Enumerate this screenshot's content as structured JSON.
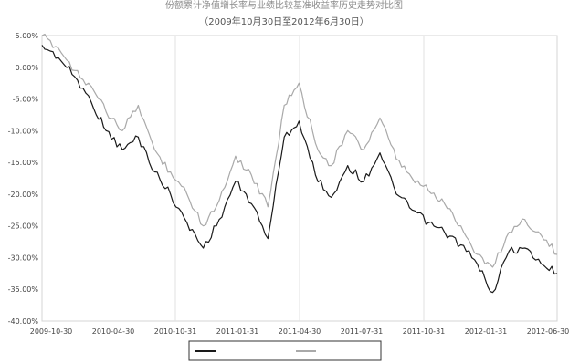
{
  "chart_data": {
    "type": "line",
    "title": "份额累计净值增长率与业绩比较基准收益率历史走势对比图",
    "subtitle": "（2009年10月30日至2012年6月30日）",
    "xlabel": "",
    "ylabel": "",
    "x_tick_labels": [
      "2009-10-30",
      "2010-04-30",
      "2010-10-31",
      "2011-01-31",
      "2011-04-30",
      "2011-07-31",
      "2011-10-31",
      "2012-01-31",
      "2012-06-30"
    ],
    "y_tick_labels": [
      "5.00%",
      "0.00%",
      "-5.00%",
      "-10.00%",
      "-15.00%",
      "-20.00%",
      "-25.00%",
      "-30.00%",
      "-35.00%",
      "-40.00%"
    ],
    "ylim": [
      -40,
      5
    ],
    "grid": "vertical",
    "legend_position": "bottom",
    "x_dates": [
      "2009-10-30",
      "2009-11-30",
      "2009-12-31",
      "2010-01-31",
      "2010-02-28",
      "2010-03-31",
      "2010-04-30",
      "2010-05-31",
      "2010-06-30",
      "2010-07-31",
      "2010-08-31",
      "2010-09-30",
      "2010-10-31",
      "2010-11-30",
      "2010-12-31",
      "2011-01-31",
      "2011-02-28",
      "2011-03-31",
      "2011-04-30",
      "2011-05-31",
      "2011-06-30",
      "2011-07-31",
      "2011-08-31",
      "2011-09-30",
      "2011-10-31",
      "2011-11-30",
      "2011-12-31",
      "2012-01-31",
      "2012-02-29",
      "2012-03-31",
      "2012-04-30",
      "2012-05-31",
      "2012-06-30"
    ],
    "series": [
      {
        "values": [
          3.5,
          1.5,
          -1.5,
          -5.5,
          -10.0,
          -13.0,
          -11.0,
          -16.5,
          -20.0,
          -24.5,
          -28.5,
          -24.0,
          -18.0,
          -21.5,
          -27.0,
          -11.0,
          -8.5,
          -17.0,
          -20.5,
          -15.5,
          -18.0,
          -13.5,
          -20.0,
          -22.5,
          -24.5,
          -26.0,
          -28.0,
          -31.0,
          -35.5,
          -29.0,
          -28.5,
          -31.0,
          -32.5
        ],
        "color": "#1a1a1a"
      },
      {
        "values": [
          5.0,
          3.0,
          -0.5,
          -3.0,
          -7.0,
          -10.0,
          -6.0,
          -13.0,
          -16.5,
          -20.0,
          -25.0,
          -21.0,
          -14.0,
          -17.0,
          -22.0,
          -6.0,
          -2.5,
          -12.0,
          -15.5,
          -10.0,
          -13.0,
          -8.0,
          -14.5,
          -17.5,
          -19.5,
          -21.5,
          -25.0,
          -29.5,
          -31.5,
          -26.0,
          -24.0,
          -26.5,
          -29.5
        ],
        "color": "#a9a9a9"
      }
    ]
  }
}
